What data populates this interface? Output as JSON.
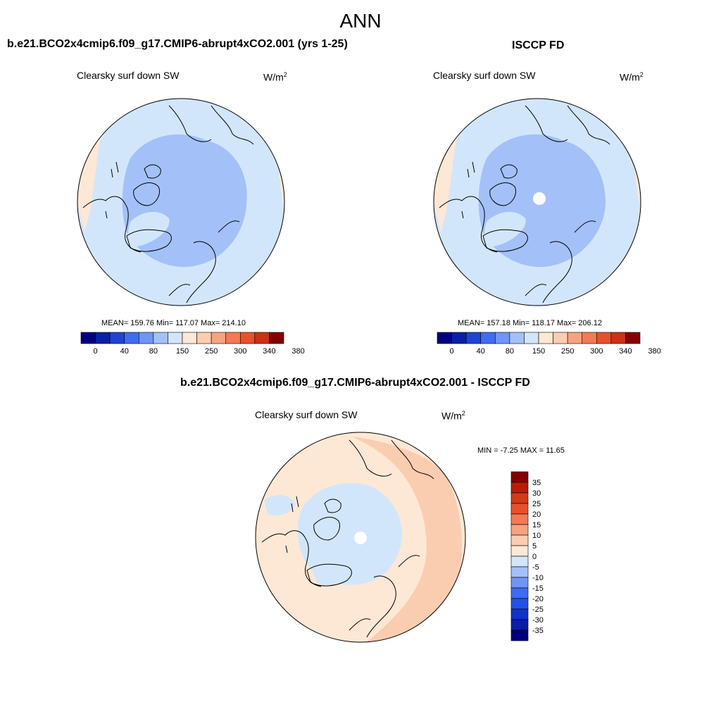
{
  "title": "ANN",
  "panels": [
    {
      "id": "model",
      "title": "b.e21.BCO2x4cmip6.f09_g17.CMIP6-abrupt4xCO2.001 (yrs 1-25)",
      "variable": "Clearsky surf down SW",
      "units_base": "W/m",
      "units_sup": "2",
      "stats": "MEAN= 159.76  Min= 117.07  Max= 214.10",
      "has_pole_hole": false
    },
    {
      "id": "obs",
      "title": "ISCCP FD",
      "variable": "Clearsky surf down SW",
      "units_base": "W/m",
      "units_sup": "2",
      "stats": "MEAN= 157.18  Min= 118.17  Max= 206.12",
      "has_pole_hole": true
    },
    {
      "id": "diff",
      "title": "b.e21.BCO2x4cmip6.f09_g17.CMIP6-abrupt4xCO2.001 - ISCCP FD",
      "variable": "Clearsky surf down SW",
      "units_base": "W/m",
      "units_sup": "2",
      "stats": "MIN =  -7.25 MAX =  11.65",
      "has_pole_hole": true
    }
  ],
  "colorbar_main": {
    "colors": [
      "#00007f",
      "#0a1fa6",
      "#1f43d6",
      "#3f6cf0",
      "#6f95f5",
      "#a3c1f8",
      "#d2e6fb",
      "#fde8d5",
      "#fbcdb0",
      "#f6a47f",
      "#f07b55",
      "#e8502d",
      "#cf2f12",
      "#830000"
    ],
    "tick_labels": [
      "0",
      "40",
      "80",
      "150",
      "250",
      "300",
      "340",
      "380"
    ]
  },
  "colorbar_diff": {
    "colors": [
      "#00007f",
      "#0a1fa6",
      "#1233c8",
      "#2450e8",
      "#3f6cf0",
      "#6f95f5",
      "#a3c1f8",
      "#d2e6fb",
      "#fde8d5",
      "#fbcdb0",
      "#f6a47f",
      "#f07b55",
      "#e8502d",
      "#d33a17",
      "#b81d06",
      "#830000"
    ],
    "tick_labels": [
      "35",
      "30",
      "25",
      "20",
      "15",
      "10",
      "5",
      "0",
      "-5",
      "-10",
      "-15",
      "-20",
      "-25",
      "-30",
      "-35"
    ]
  },
  "map_colors": {
    "main_outer": "#d2e6fb",
    "main_inner": "#a3c1f8",
    "main_warm": "#fde8d5",
    "diff_base": "#fde8d5",
    "diff_cool": "#d2e6fb",
    "diff_warm": "#fbcdb0"
  }
}
